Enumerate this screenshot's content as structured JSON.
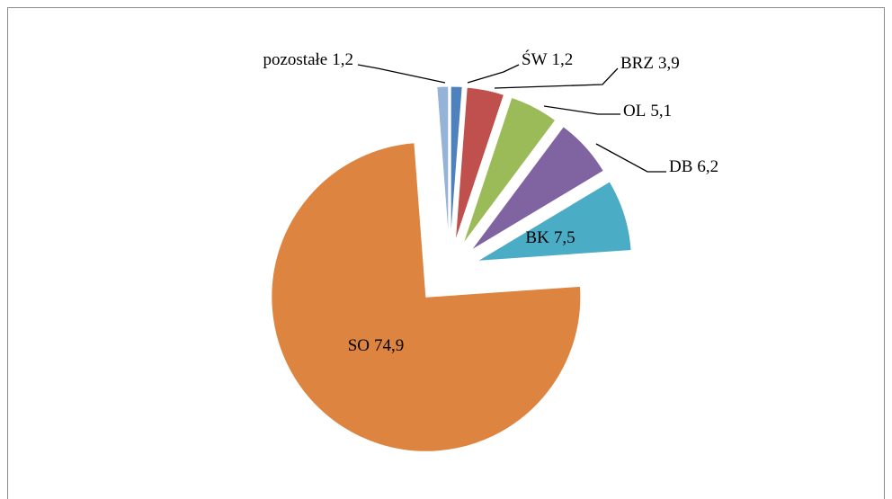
{
  "chart_data": {
    "type": "pie",
    "categories": [
      "ŚW",
      "BRZ",
      "OL",
      "DB",
      "BK",
      "SO",
      "pozostałe"
    ],
    "values": [
      1.2,
      3.9,
      5.1,
      6.2,
      7.5,
      74.9,
      1.2
    ],
    "value_labels": [
      "1,2",
      "3,9",
      "5,1",
      "6,2",
      "7,5",
      "74,9",
      "1,2"
    ],
    "colors": [
      "#4f81bd",
      "#c0504d",
      "#9bbb59",
      "#8064a2",
      "#4bacc6",
      "#dd8440",
      "#95b3d7"
    ]
  }
}
